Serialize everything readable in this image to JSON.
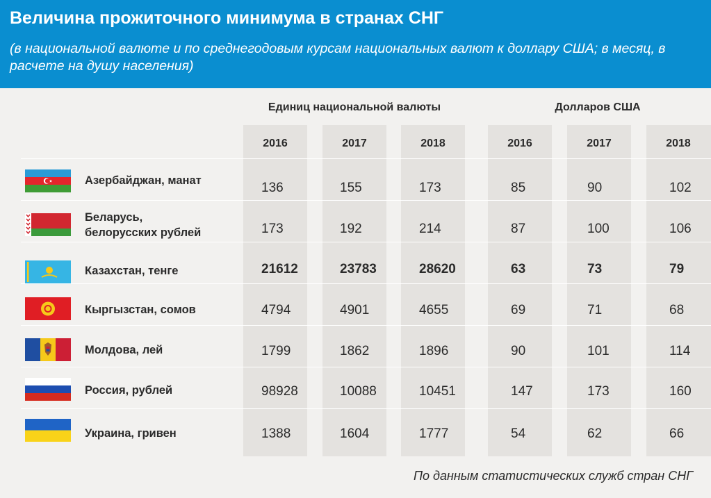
{
  "header": {
    "title": "Величина прожиточного минимума в странах СНГ",
    "subtitle": "(в национальной валюте и по среднегодовым курсам национальных валют к доллару США; в месяц, в расчете на душу населения)"
  },
  "chart_data": {
    "type": "table",
    "column_groups": [
      {
        "label": "Единиц национальной валюты",
        "years": [
          "2016",
          "2017",
          "2018"
        ]
      },
      {
        "label": "Долларов США",
        "years": [
          "2016",
          "2017",
          "2018"
        ]
      }
    ],
    "rows": [
      {
        "country": "Азербайджан, манат",
        "flag": "azerbaijan-flag-icon",
        "values": [
          "136",
          "155",
          "173",
          "85",
          "90",
          "102"
        ],
        "bold": false
      },
      {
        "country": "Беларусь,\nбелорусских рублей",
        "flag": "belarus-flag-icon",
        "values": [
          "173",
          "192",
          "214",
          "87",
          "100",
          "106"
        ],
        "bold": false
      },
      {
        "country": "Казахстан, тенге",
        "flag": "kazakhstan-flag-icon",
        "values": [
          "21612",
          "23783",
          "28620",
          "63",
          "73",
          "79"
        ],
        "bold": true
      },
      {
        "country": "Кыргызстан, сомов",
        "flag": "kyrgyzstan-flag-icon",
        "values": [
          "4794",
          "4901",
          "4655",
          "69",
          "71",
          "68"
        ],
        "bold": false
      },
      {
        "country": "Молдова, лей",
        "flag": "moldova-flag-icon",
        "values": [
          "1799",
          "1862",
          "1896",
          "90",
          "101",
          "114"
        ],
        "bold": false
      },
      {
        "country": "Россия, рублей",
        "flag": "russia-flag-icon",
        "values": [
          "98928",
          "10088",
          "10451",
          "147",
          "173",
          "160"
        ],
        "bold": false
      },
      {
        "country": "Украина, гривен",
        "flag": "ukraine-flag-icon",
        "values": [
          "1388",
          "1604",
          "1777",
          "54",
          "62",
          "66"
        ],
        "bold": false
      }
    ]
  },
  "footer": {
    "source": "По данным статистических служб стран СНГ"
  },
  "colors": {
    "header": "#0a8ed0",
    "column_band": "#e4e2df",
    "background": "#f2f1ef"
  }
}
